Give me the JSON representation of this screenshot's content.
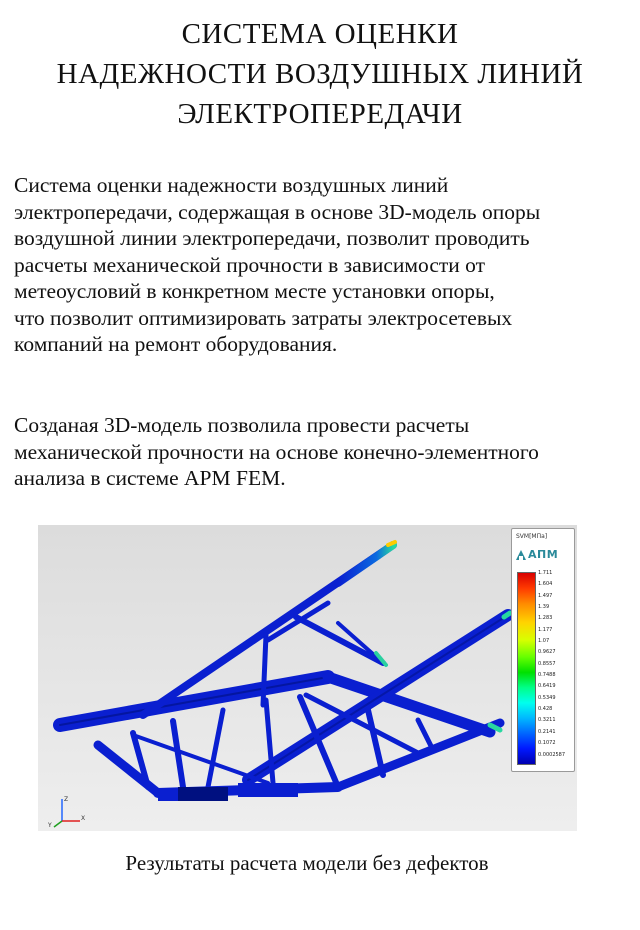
{
  "title_lines": [
    "СИСТЕМА  ОЦЕНКИ",
    "НАДЕЖНОСТИ  ВОЗДУШНЫХ  ЛИНИЙ",
    "ЭЛЕКТРОПЕРЕДАЧИ"
  ],
  "paragraph1_lines": [
    "Система оценки надежности воздушных линий",
    "электропередачи, содержащая в основе 3D-модель опоры",
    "воздушной линии электропередачи, позволит проводить",
    "расчеты механической прочности в зависимости от",
    "метеоусловий в конкретном месте установки опоры,",
    "что позволит оптимизировать затраты электросетевых",
    "компаний на ремонт оборудования."
  ],
  "paragraph2_lines": [
    "Созданая 3D-модель позволила провести расчеты",
    "механической прочности на основе конечно-элементного",
    "анализа в системе APM FEM."
  ],
  "legend": {
    "title": "SVM[МПа]",
    "logo_text": "АПМ",
    "values": [
      "1.711",
      "1.604",
      "1.497",
      "1.39",
      "1.283",
      "1.177",
      "1.07",
      "0.9627",
      "0.8557",
      "0.7488",
      "0.6419",
      "0.5349",
      "0.428",
      "0.3211",
      "0.2141",
      "0.1072",
      "0.0002587"
    ]
  },
  "axis_labels": {
    "z": "Z",
    "x": "X",
    "y": "Y"
  },
  "caption": "Результаты расчета модели без дефектов",
  "colors": {
    "model_blue": "#0a1fd0",
    "model_dark": "#001080",
    "background_gray": "#e3e3e3"
  }
}
